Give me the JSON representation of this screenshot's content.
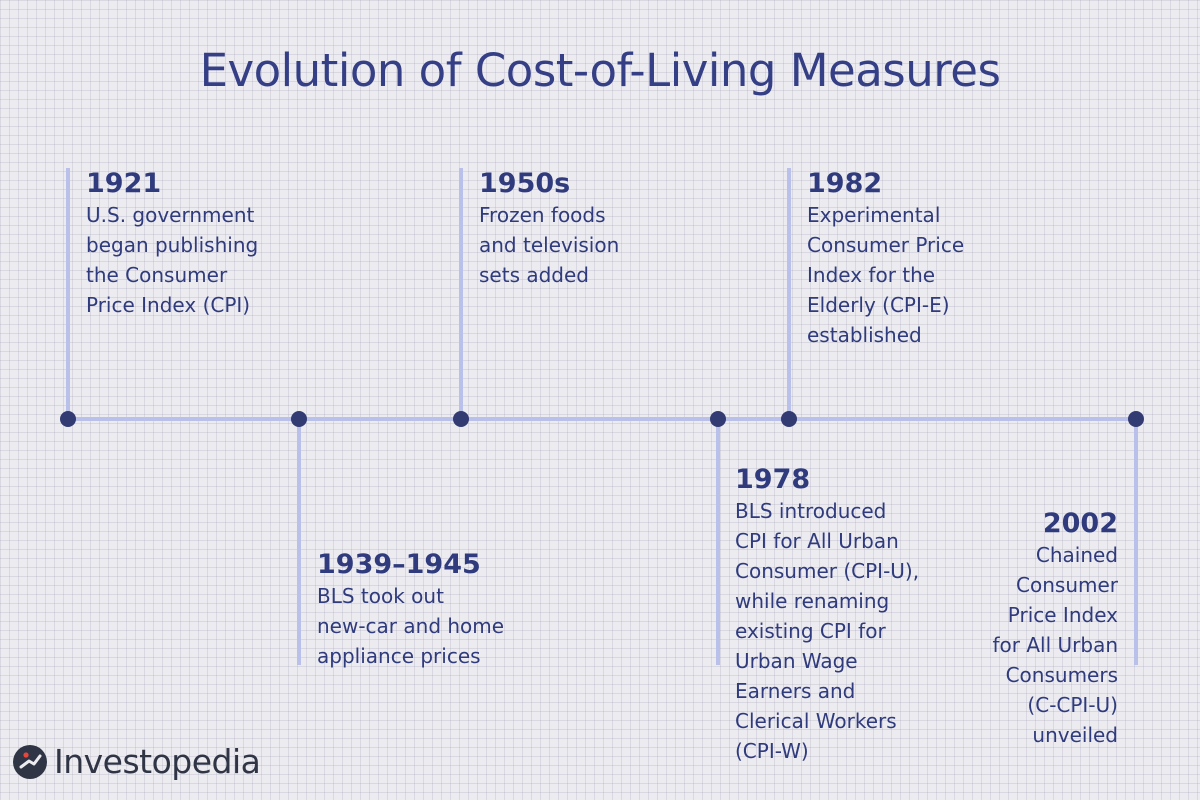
{
  "title": "Evolution of Cost-of-Living Measures",
  "colors": {
    "line": "#b9c1ea",
    "dot": "#323b72",
    "text": "#2f3b7c"
  },
  "events": [
    {
      "year": "1921",
      "desc": "U.S. government\nbegan publishing\nthe Consumer\nPrice Index (CPI)"
    },
    {
      "year": "1939–1945",
      "desc": "BLS took out\nnew-car and home\nappliance prices"
    },
    {
      "year": "1950s",
      "desc": "Frozen foods\nand television\nsets added"
    },
    {
      "year": "1978",
      "desc": "BLS introduced\nCPI for All Urban\nConsumer (CPI-U),\nwhile renaming\nexisting CPI for\nUrban Wage\nEarners and\nClerical Workers\n(CPI-W)"
    },
    {
      "year": "1982",
      "desc": "Experimental\nConsumer Price\nIndex for the\nElderly (CPI-E)\nestablished"
    },
    {
      "year": "2002",
      "desc": "Chained\nConsumer\nPrice Index\nfor All Urban\nConsumers\n(C-CPI-U)\nunveiled"
    }
  ],
  "logo": {
    "text": "Investopedia"
  }
}
